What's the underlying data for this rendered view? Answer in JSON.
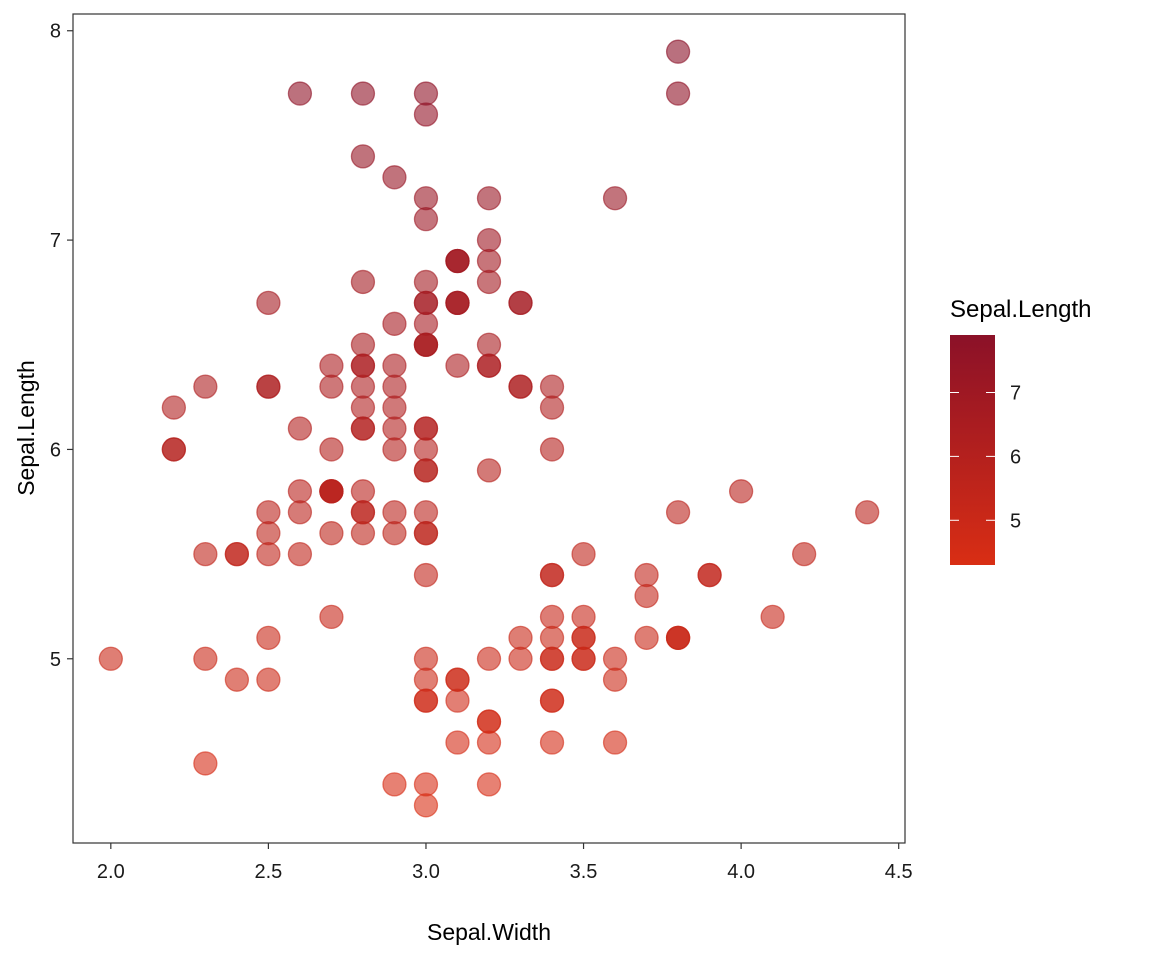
{
  "chart_data": {
    "type": "scatter",
    "title": "",
    "xlabel": "Sepal.Width",
    "ylabel": "Sepal.Length",
    "xlim": [
      1.88,
      4.52
    ],
    "ylim": [
      4.12,
      8.08
    ],
    "x_ticks": [
      {
        "value": 2.0,
        "label": "2.0"
      },
      {
        "value": 2.5,
        "label": "2.5"
      },
      {
        "value": 3.0,
        "label": "3.0"
      },
      {
        "value": 3.5,
        "label": "3.5"
      },
      {
        "value": 4.0,
        "label": "4.0"
      },
      {
        "value": 4.5,
        "label": "4.5"
      }
    ],
    "y_ticks": [
      {
        "value": 5,
        "label": "5"
      },
      {
        "value": 6,
        "label": "6"
      },
      {
        "value": 7,
        "label": "7"
      },
      {
        "value": 8,
        "label": "8"
      }
    ],
    "color_by": "Sepal.Length",
    "legend": {
      "title": "Sepal.Length",
      "placement": "right",
      "range": [
        4.3,
        7.9
      ],
      "ticks": [
        {
          "value": 5,
          "label": "5"
        },
        {
          "value": 6,
          "label": "6"
        },
        {
          "value": 7,
          "label": "7"
        }
      ],
      "color_low": "#d92e14",
      "color_high": "#8b1128"
    },
    "point_alpha": 0.6,
    "grid": false,
    "points": [
      [
        3.5,
        5.1
      ],
      [
        3.0,
        4.9
      ],
      [
        3.2,
        4.7
      ],
      [
        3.1,
        4.6
      ],
      [
        3.6,
        5.0
      ],
      [
        3.9,
        5.4
      ],
      [
        3.4,
        4.6
      ],
      [
        3.4,
        5.0
      ],
      [
        2.9,
        4.4
      ],
      [
        3.1,
        4.9
      ],
      [
        3.7,
        5.4
      ],
      [
        3.4,
        4.8
      ],
      [
        3.0,
        4.8
      ],
      [
        3.0,
        4.3
      ],
      [
        4.0,
        5.8
      ],
      [
        4.4,
        5.7
      ],
      [
        3.9,
        5.4
      ],
      [
        3.5,
        5.1
      ],
      [
        3.8,
        5.7
      ],
      [
        3.8,
        5.1
      ],
      [
        3.4,
        5.4
      ],
      [
        3.7,
        5.1
      ],
      [
        3.6,
        4.6
      ],
      [
        3.3,
        5.1
      ],
      [
        3.4,
        4.8
      ],
      [
        3.0,
        5.0
      ],
      [
        3.4,
        5.0
      ],
      [
        3.5,
        5.2
      ],
      [
        3.4,
        5.2
      ],
      [
        3.2,
        4.7
      ],
      [
        3.1,
        4.8
      ],
      [
        3.4,
        5.4
      ],
      [
        4.1,
        5.2
      ],
      [
        4.2,
        5.5
      ],
      [
        3.1,
        4.9
      ],
      [
        3.2,
        5.0
      ],
      [
        3.5,
        5.5
      ],
      [
        3.6,
        4.9
      ],
      [
        3.0,
        4.4
      ],
      [
        3.4,
        5.1
      ],
      [
        3.5,
        5.0
      ],
      [
        2.3,
        4.5
      ],
      [
        3.2,
        4.4
      ],
      [
        3.5,
        5.0
      ],
      [
        3.8,
        5.1
      ],
      [
        3.0,
        4.8
      ],
      [
        3.8,
        5.1
      ],
      [
        3.2,
        4.6
      ],
      [
        3.7,
        5.3
      ],
      [
        3.3,
        5.0
      ],
      [
        3.2,
        7.0
      ],
      [
        3.2,
        6.4
      ],
      [
        3.1,
        6.9
      ],
      [
        2.3,
        5.5
      ],
      [
        2.8,
        6.5
      ],
      [
        2.8,
        5.7
      ],
      [
        3.3,
        6.3
      ],
      [
        2.4,
        4.9
      ],
      [
        2.9,
        6.6
      ],
      [
        2.7,
        5.2
      ],
      [
        2.0,
        5.0
      ],
      [
        3.0,
        5.9
      ],
      [
        2.2,
        6.0
      ],
      [
        2.9,
        6.1
      ],
      [
        2.9,
        5.6
      ],
      [
        3.1,
        6.7
      ],
      [
        3.0,
        5.6
      ],
      [
        2.7,
        5.8
      ],
      [
        2.2,
        6.2
      ],
      [
        2.5,
        5.6
      ],
      [
        3.2,
        5.9
      ],
      [
        2.8,
        6.1
      ],
      [
        2.5,
        6.3
      ],
      [
        2.8,
        6.1
      ],
      [
        2.9,
        6.4
      ],
      [
        3.0,
        6.6
      ],
      [
        2.8,
        6.8
      ],
      [
        3.0,
        6.7
      ],
      [
        2.9,
        6.0
      ],
      [
        2.6,
        5.7
      ],
      [
        2.4,
        5.5
      ],
      [
        2.4,
        5.5
      ],
      [
        2.7,
        5.8
      ],
      [
        2.7,
        6.0
      ],
      [
        3.0,
        5.4
      ],
      [
        3.4,
        6.0
      ],
      [
        3.1,
        6.7
      ],
      [
        2.3,
        6.3
      ],
      [
        3.0,
        5.6
      ],
      [
        2.5,
        5.5
      ],
      [
        2.6,
        5.5
      ],
      [
        3.0,
        6.1
      ],
      [
        2.6,
        5.8
      ],
      [
        2.3,
        5.0
      ],
      [
        2.7,
        5.6
      ],
      [
        3.0,
        5.7
      ],
      [
        2.9,
        5.7
      ],
      [
        2.9,
        6.2
      ],
      [
        2.5,
        5.1
      ],
      [
        2.8,
        5.7
      ],
      [
        3.3,
        6.3
      ],
      [
        2.7,
        5.8
      ],
      [
        3.0,
        7.1
      ],
      [
        2.9,
        6.3
      ],
      [
        3.0,
        6.5
      ],
      [
        3.0,
        7.6
      ],
      [
        2.5,
        4.9
      ],
      [
        2.9,
        7.3
      ],
      [
        2.5,
        6.7
      ],
      [
        3.6,
        7.2
      ],
      [
        3.2,
        6.5
      ],
      [
        2.7,
        6.4
      ],
      [
        3.0,
        6.8
      ],
      [
        2.5,
        5.7
      ],
      [
        2.8,
        5.8
      ],
      [
        3.2,
        6.4
      ],
      [
        3.0,
        6.5
      ],
      [
        3.8,
        7.7
      ],
      [
        2.6,
        7.7
      ],
      [
        2.2,
        6.0
      ],
      [
        3.2,
        6.9
      ],
      [
        2.8,
        5.6
      ],
      [
        2.8,
        7.7
      ],
      [
        2.7,
        6.3
      ],
      [
        3.3,
        6.7
      ],
      [
        3.2,
        7.2
      ],
      [
        2.8,
        6.2
      ],
      [
        3.0,
        6.1
      ],
      [
        2.8,
        6.4
      ],
      [
        3.0,
        7.2
      ],
      [
        2.8,
        7.4
      ],
      [
        3.8,
        7.9
      ],
      [
        2.8,
        6.4
      ],
      [
        2.8,
        6.3
      ],
      [
        2.6,
        6.1
      ],
      [
        3.0,
        7.7
      ],
      [
        3.4,
        6.3
      ],
      [
        3.1,
        6.4
      ],
      [
        3.0,
        6.0
      ],
      [
        3.1,
        6.9
      ],
      [
        3.1,
        6.7
      ],
      [
        3.1,
        6.9
      ],
      [
        2.7,
        5.8
      ],
      [
        3.2,
        6.8
      ],
      [
        3.3,
        6.7
      ],
      [
        3.0,
        6.7
      ],
      [
        2.5,
        6.3
      ],
      [
        3.0,
        6.5
      ],
      [
        3.4,
        6.2
      ],
      [
        3.0,
        5.9
      ]
    ]
  }
}
